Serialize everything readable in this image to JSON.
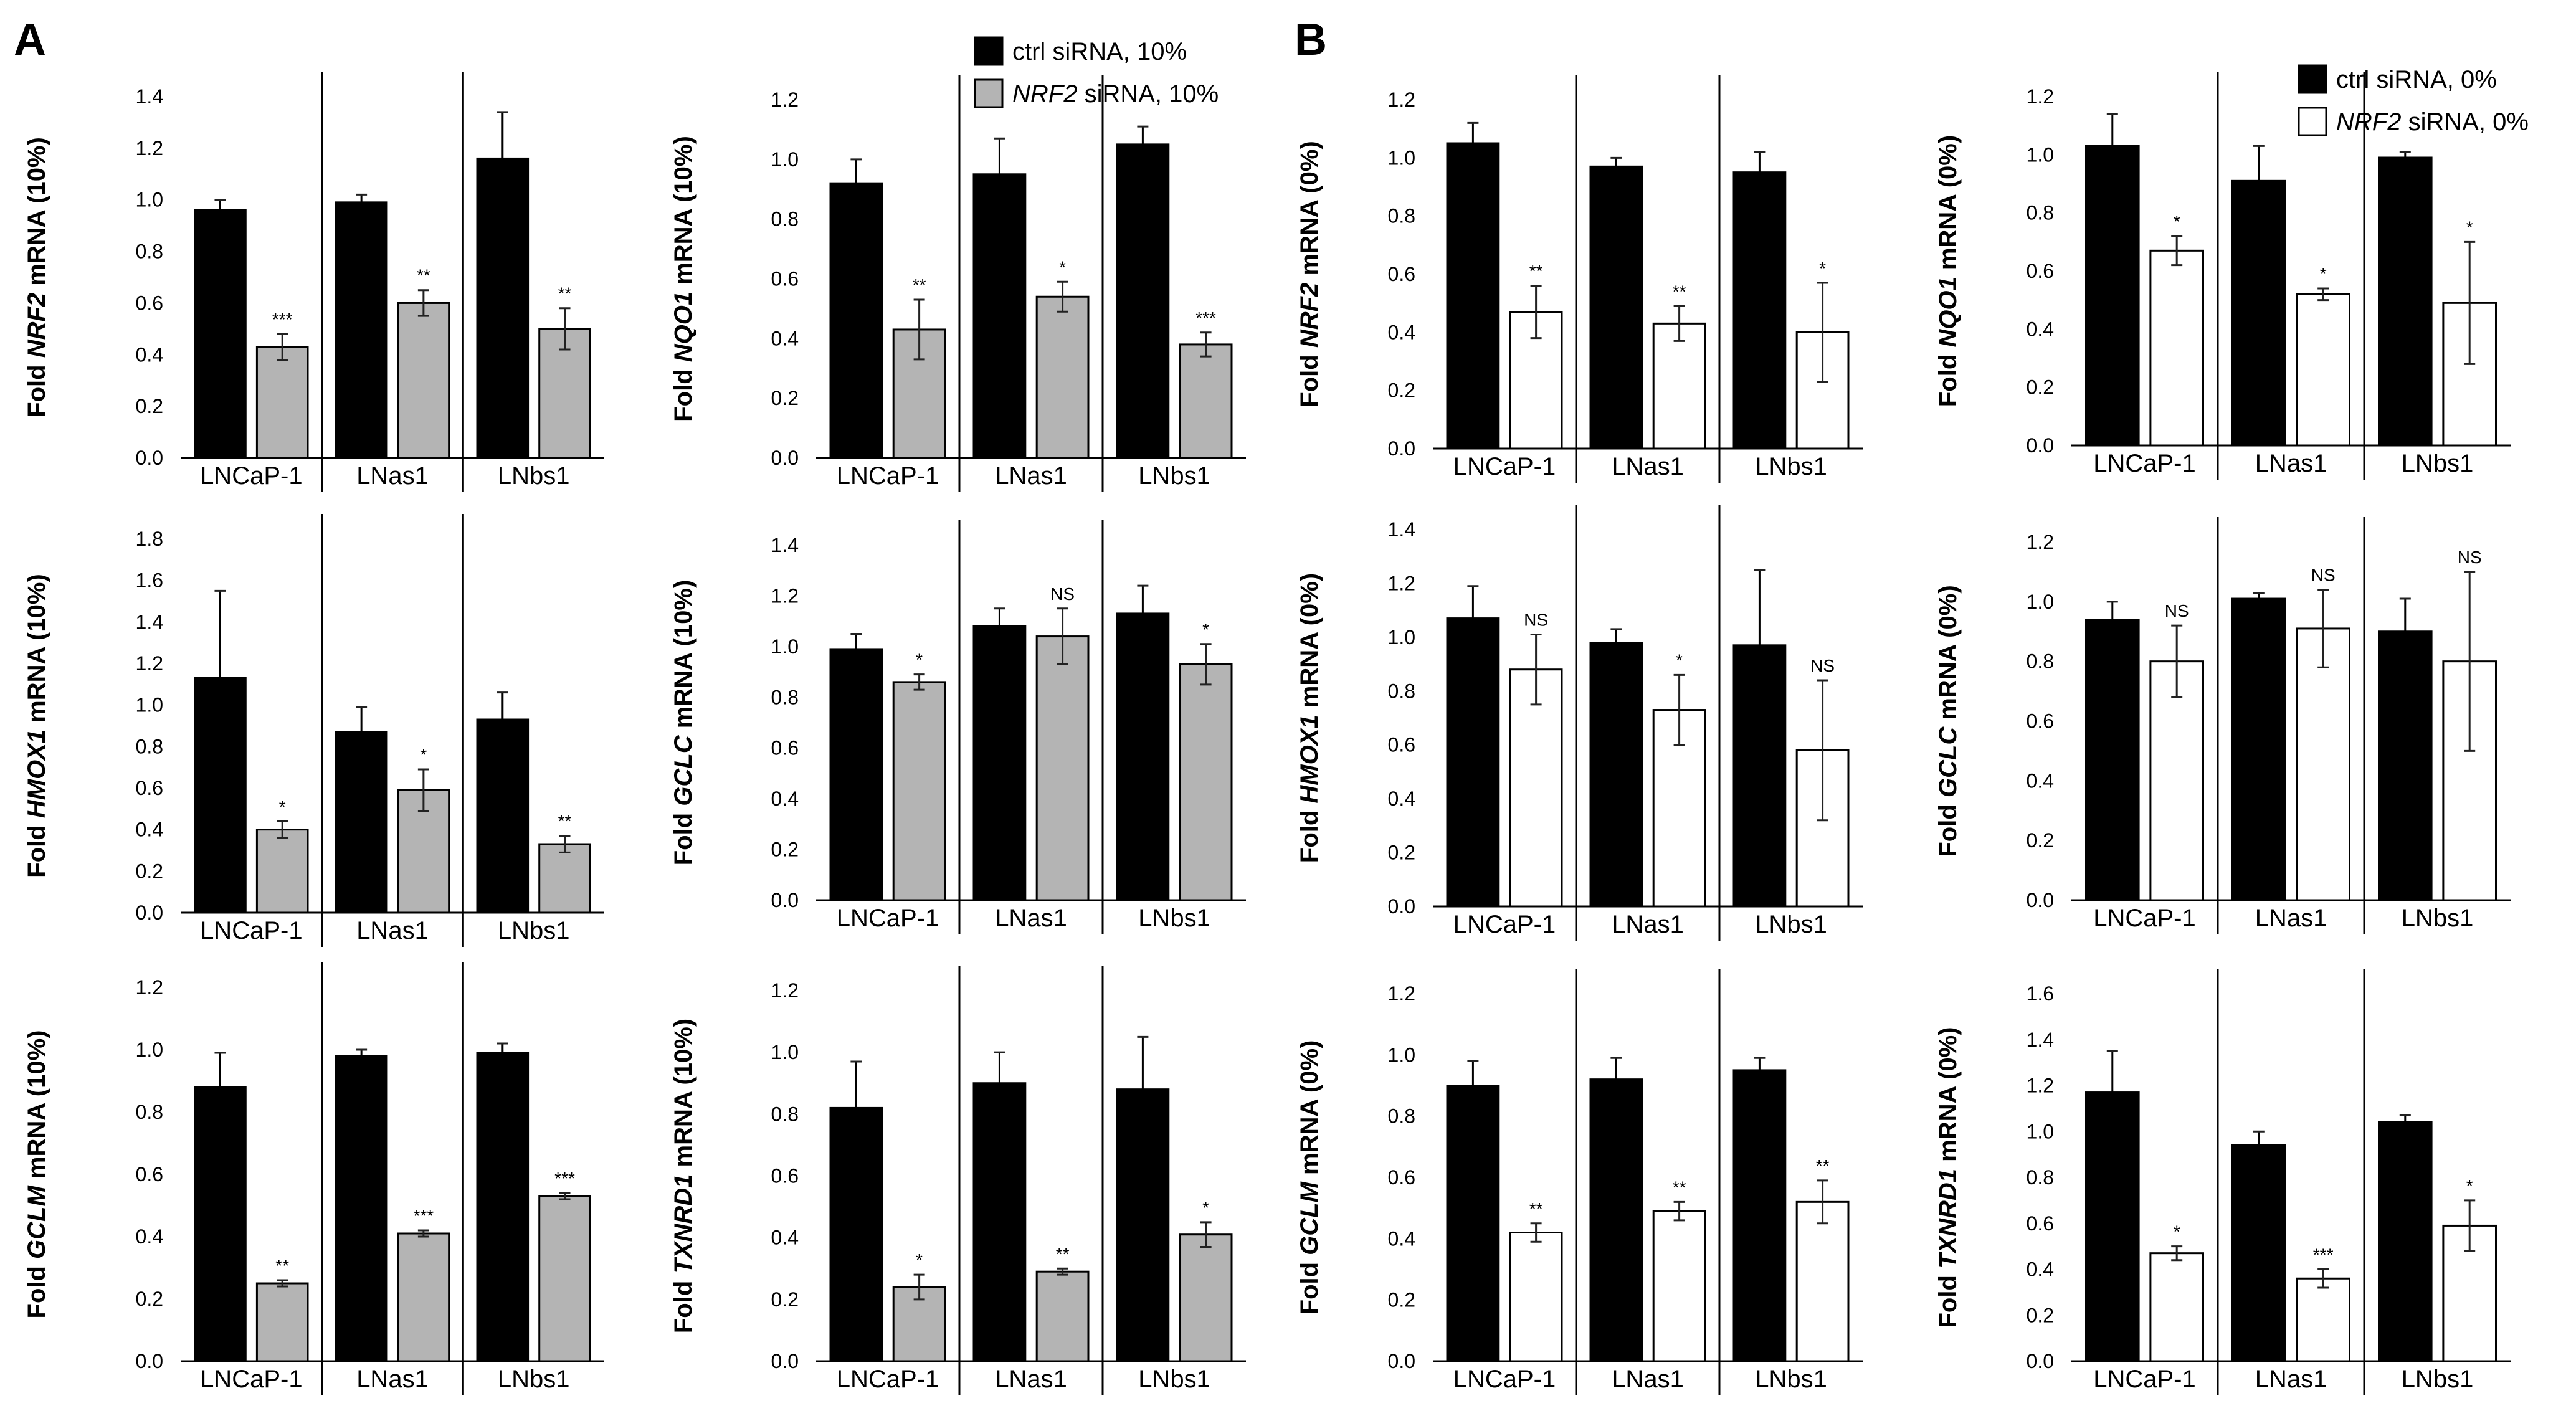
{
  "panels": [
    {
      "label": "A",
      "legend": [
        {
          "prefix": "ctrl siRNA, 10%",
          "gene": "",
          "suffix": "",
          "fill": "#000000"
        },
        {
          "prefix": "",
          "gene": "NRF2",
          "suffix": " siRNA, 10%",
          "fill": "#b4b4b4"
        }
      ]
    },
    {
      "label": "B",
      "legend": [
        {
          "prefix": "ctrl siRNA, 0%",
          "gene": "",
          "suffix": "",
          "fill": "#000000"
        },
        {
          "prefix": "",
          "gene": "NRF2",
          "suffix": " siRNA, 0%",
          "fill": "#ffffff"
        }
      ]
    }
  ],
  "colors": {
    "ctrl": "#000000",
    "sirna_10": "#b4b4b4",
    "sirna_0": "#ffffff",
    "axis": "#000000"
  },
  "chart_data": [
    {
      "type": "bar",
      "gene": "NRF2",
      "condition": "10%",
      "ylabel_prefix": "Fold ",
      "ylabel_suffix": " mRNA (10%)",
      "ylim": [
        0,
        1.4
      ],
      "ticks": [
        "0.0",
        "0.2",
        "0.4",
        "0.6",
        "0.8",
        "1.0",
        "1.2",
        "1.4"
      ],
      "categories": [
        "LNCaP-1",
        "LNas1",
        "LNbs1"
      ],
      "series": [
        {
          "name": "ctrl siRNA, 10%",
          "values": [
            0.96,
            0.99,
            1.16
          ],
          "errors": [
            0.04,
            0.03,
            0.18
          ]
        },
        {
          "name": "NRF2 siRNA, 10%",
          "values": [
            0.43,
            0.6,
            0.5
          ],
          "errors": [
            0.05,
            0.05,
            0.08
          ]
        }
      ],
      "significance": [
        "***",
        "**",
        "**"
      ]
    },
    {
      "type": "bar",
      "gene": "NQO1",
      "condition": "10%",
      "ylabel_prefix": "Fold ",
      "ylabel_suffix": " mRNA (10%)",
      "ylim": [
        0,
        1.2
      ],
      "ticks": [
        "0.0",
        "0.2",
        "0.4",
        "0.6",
        "0.8",
        "1.0",
        "1.2"
      ],
      "categories": [
        "LNCaP-1",
        "LNas1",
        "LNbs1"
      ],
      "series": [
        {
          "name": "ctrl siRNA, 10%",
          "values": [
            0.92,
            0.95,
            1.05
          ],
          "errors": [
            0.08,
            0.12,
            0.06
          ]
        },
        {
          "name": "NRF2 siRNA, 10%",
          "values": [
            0.43,
            0.54,
            0.38
          ],
          "errors": [
            0.1,
            0.05,
            0.04
          ]
        }
      ],
      "significance": [
        "**",
        "*",
        "***"
      ]
    },
    {
      "type": "bar",
      "gene": "NRF2",
      "condition": "0%",
      "ylabel_prefix": "Fold ",
      "ylabel_suffix": " mRNA (0%)",
      "ylim": [
        0,
        1.2
      ],
      "ticks": [
        "0.0",
        "0.2",
        "0.4",
        "0.6",
        "0.8",
        "1.0",
        "1.2"
      ],
      "categories": [
        "LNCaP-1",
        "LNas1",
        "LNbs1"
      ],
      "series": [
        {
          "name": "ctrl siRNA, 0%",
          "values": [
            1.05,
            0.97,
            0.95
          ],
          "errors": [
            0.07,
            0.03,
            0.07
          ]
        },
        {
          "name": "NRF2 siRNA, 0%",
          "values": [
            0.47,
            0.43,
            0.4
          ],
          "errors": [
            0.09,
            0.06,
            0.17
          ]
        }
      ],
      "significance": [
        "**",
        "**",
        "*"
      ]
    },
    {
      "type": "bar",
      "gene": "NQO1",
      "condition": "0%",
      "ylabel_prefix": "Fold ",
      "ylabel_suffix": " mRNA (0%)",
      "ylim": [
        0,
        1.2
      ],
      "ticks": [
        "0.0",
        "0.2",
        "0.4",
        "0.6",
        "0.8",
        "1.0",
        "1.2"
      ],
      "categories": [
        "LNCaP-1",
        "LNas1",
        "LNbs1"
      ],
      "series": [
        {
          "name": "ctrl siRNA, 0%",
          "values": [
            1.03,
            0.91,
            0.99
          ],
          "errors": [
            0.11,
            0.12,
            0.02
          ]
        },
        {
          "name": "NRF2 siRNA, 0%",
          "values": [
            0.67,
            0.52,
            0.49
          ],
          "errors": [
            0.05,
            0.02,
            0.21
          ]
        }
      ],
      "significance": [
        "*",
        "*",
        "*"
      ]
    },
    {
      "type": "bar",
      "gene": "HMOX1",
      "condition": "10%",
      "ylabel_prefix": "Fold ",
      "ylabel_suffix": " mRNA (10%)",
      "ylim": [
        0,
        1.8
      ],
      "ticks": [
        "0.0",
        "0.2",
        "0.4",
        "0.6",
        "0.8",
        "1.0",
        "1.2",
        "1.4",
        "1.6",
        "1.8"
      ],
      "categories": [
        "LNCaP-1",
        "LNas1",
        "LNbs1"
      ],
      "series": [
        {
          "name": "ctrl siRNA, 10%",
          "values": [
            1.13,
            0.87,
            0.93
          ],
          "errors": [
            0.42,
            0.12,
            0.13
          ]
        },
        {
          "name": "NRF2 siRNA, 10%",
          "values": [
            0.4,
            0.59,
            0.33
          ],
          "errors": [
            0.04,
            0.1,
            0.04
          ]
        }
      ],
      "significance": [
        "*",
        "*",
        "**"
      ]
    },
    {
      "type": "bar",
      "gene": "GCLC",
      "condition": "10%",
      "ylabel_prefix": "Fold ",
      "ylabel_suffix": " mRNA (10%)",
      "ylim": [
        0,
        1.4
      ],
      "ticks": [
        "0.0",
        "0.2",
        "0.4",
        "0.6",
        "0.8",
        "1.0",
        "1.2",
        "1.4"
      ],
      "categories": [
        "LNCaP-1",
        "LNas1",
        "LNbs1"
      ],
      "series": [
        {
          "name": "ctrl siRNA, 10%",
          "values": [
            0.99,
            1.08,
            1.13
          ],
          "errors": [
            0.06,
            0.07,
            0.11
          ]
        },
        {
          "name": "NRF2 siRNA, 10%",
          "values": [
            0.86,
            1.04,
            0.93
          ],
          "errors": [
            0.03,
            0.11,
            0.08
          ]
        }
      ],
      "significance": [
        "*",
        "NS",
        "*"
      ]
    },
    {
      "type": "bar",
      "gene": "HMOX1",
      "condition": "0%",
      "ylabel_prefix": "Fold ",
      "ylabel_suffix": " mRNA (0%)",
      "ylim": [
        0,
        1.4
      ],
      "ticks": [
        "0.0",
        "0.2",
        "0.4",
        "0.6",
        "0.8",
        "1.0",
        "1.2",
        "1.4"
      ],
      "categories": [
        "LNCaP-1",
        "LNas1",
        "LNbs1"
      ],
      "series": [
        {
          "name": "ctrl siRNA, 0%",
          "values": [
            1.07,
            0.98,
            0.97
          ],
          "errors": [
            0.12,
            0.05,
            0.28
          ]
        },
        {
          "name": "NRF2 siRNA, 0%",
          "values": [
            0.88,
            0.73,
            0.58
          ],
          "errors": [
            0.13,
            0.13,
            0.26
          ]
        }
      ],
      "significance": [
        "NS",
        "*",
        "NS"
      ]
    },
    {
      "type": "bar",
      "gene": "GCLC",
      "condition": "0%",
      "ylabel_prefix": "Fold ",
      "ylabel_suffix": " mRNA (0%)",
      "ylim": [
        0,
        1.2
      ],
      "ticks": [
        "0.0",
        "0.2",
        "0.4",
        "0.6",
        "0.8",
        "1.0",
        "1.2"
      ],
      "categories": [
        "LNCaP-1",
        "LNas1",
        "LNbs1"
      ],
      "series": [
        {
          "name": "ctrl siRNA, 0%",
          "values": [
            0.94,
            1.01,
            0.9
          ],
          "errors": [
            0.06,
            0.02,
            0.11
          ]
        },
        {
          "name": "NRF2 siRNA, 0%",
          "values": [
            0.8,
            0.91,
            0.8
          ],
          "errors": [
            0.12,
            0.13,
            0.3
          ]
        }
      ],
      "significance": [
        "NS",
        "NS",
        "NS"
      ]
    },
    {
      "type": "bar",
      "gene": "GCLM",
      "condition": "10%",
      "ylabel_prefix": "Fold ",
      "ylabel_suffix": " mRNA (10%)",
      "ylim": [
        0,
        1.2
      ],
      "ticks": [
        "0.0",
        "0.2",
        "0.4",
        "0.6",
        "0.8",
        "1.0",
        "1.2"
      ],
      "categories": [
        "LNCaP-1",
        "LNas1",
        "LNbs1"
      ],
      "series": [
        {
          "name": "ctrl siRNA, 10%",
          "values": [
            0.88,
            0.98,
            0.99
          ],
          "errors": [
            0.11,
            0.02,
            0.03
          ]
        },
        {
          "name": "NRF2 siRNA, 10%",
          "values": [
            0.25,
            0.41,
            0.53
          ],
          "errors": [
            0.01,
            0.01,
            0.01
          ]
        }
      ],
      "significance": [
        "**",
        "***",
        "***"
      ]
    },
    {
      "type": "bar",
      "gene": "TXNRD1",
      "condition": "10%",
      "ylabel_prefix": "Fold ",
      "ylabel_suffix": " mRNA (10%)",
      "ylim": [
        0,
        1.2
      ],
      "ticks": [
        "0.0",
        "0.2",
        "0.4",
        "0.6",
        "0.8",
        "1.0",
        "1.2"
      ],
      "categories": [
        "LNCaP-1",
        "LNas1",
        "LNbs1"
      ],
      "series": [
        {
          "name": "ctrl siRNA, 10%",
          "values": [
            0.82,
            0.9,
            0.88
          ],
          "errors": [
            0.15,
            0.1,
            0.17
          ]
        },
        {
          "name": "NRF2 siRNA, 10%",
          "values": [
            0.24,
            0.29,
            0.41
          ],
          "errors": [
            0.04,
            0.01,
            0.04
          ]
        }
      ],
      "significance": [
        "*",
        "**",
        "*"
      ]
    },
    {
      "type": "bar",
      "gene": "GCLM",
      "condition": "0%",
      "ylabel_prefix": "Fold ",
      "ylabel_suffix": " mRNA (0%)",
      "ylim": [
        0,
        1.2
      ],
      "ticks": [
        "0.0",
        "0.2",
        "0.4",
        "0.6",
        "0.8",
        "1.0",
        "1.2"
      ],
      "categories": [
        "LNCaP-1",
        "LNas1",
        "LNbs1"
      ],
      "series": [
        {
          "name": "ctrl siRNA, 0%",
          "values": [
            0.9,
            0.92,
            0.95
          ],
          "errors": [
            0.08,
            0.07,
            0.04
          ]
        },
        {
          "name": "NRF2 siRNA, 0%",
          "values": [
            0.42,
            0.49,
            0.52
          ],
          "errors": [
            0.03,
            0.03,
            0.07
          ]
        }
      ],
      "significance": [
        "**",
        "**",
        "**"
      ]
    },
    {
      "type": "bar",
      "gene": "TXNRD1",
      "condition": "0%",
      "ylabel_prefix": "Fold ",
      "ylabel_suffix": " mRNA (0%)",
      "ylim": [
        0,
        1.6
      ],
      "ticks": [
        "0.0",
        "0.2",
        "0.4",
        "0.6",
        "0.8",
        "1.0",
        "1.2",
        "1.4",
        "1.6"
      ],
      "categories": [
        "LNCaP-1",
        "LNas1",
        "LNbs1"
      ],
      "series": [
        {
          "name": "ctrl siRNA, 0%",
          "values": [
            1.17,
            0.94,
            1.04
          ],
          "errors": [
            0.18,
            0.06,
            0.03
          ]
        },
        {
          "name": "NRF2 siRNA, 0%",
          "values": [
            0.47,
            0.36,
            0.59
          ],
          "errors": [
            0.03,
            0.04,
            0.11
          ]
        }
      ],
      "significance": [
        "*",
        "***",
        "*"
      ]
    }
  ]
}
